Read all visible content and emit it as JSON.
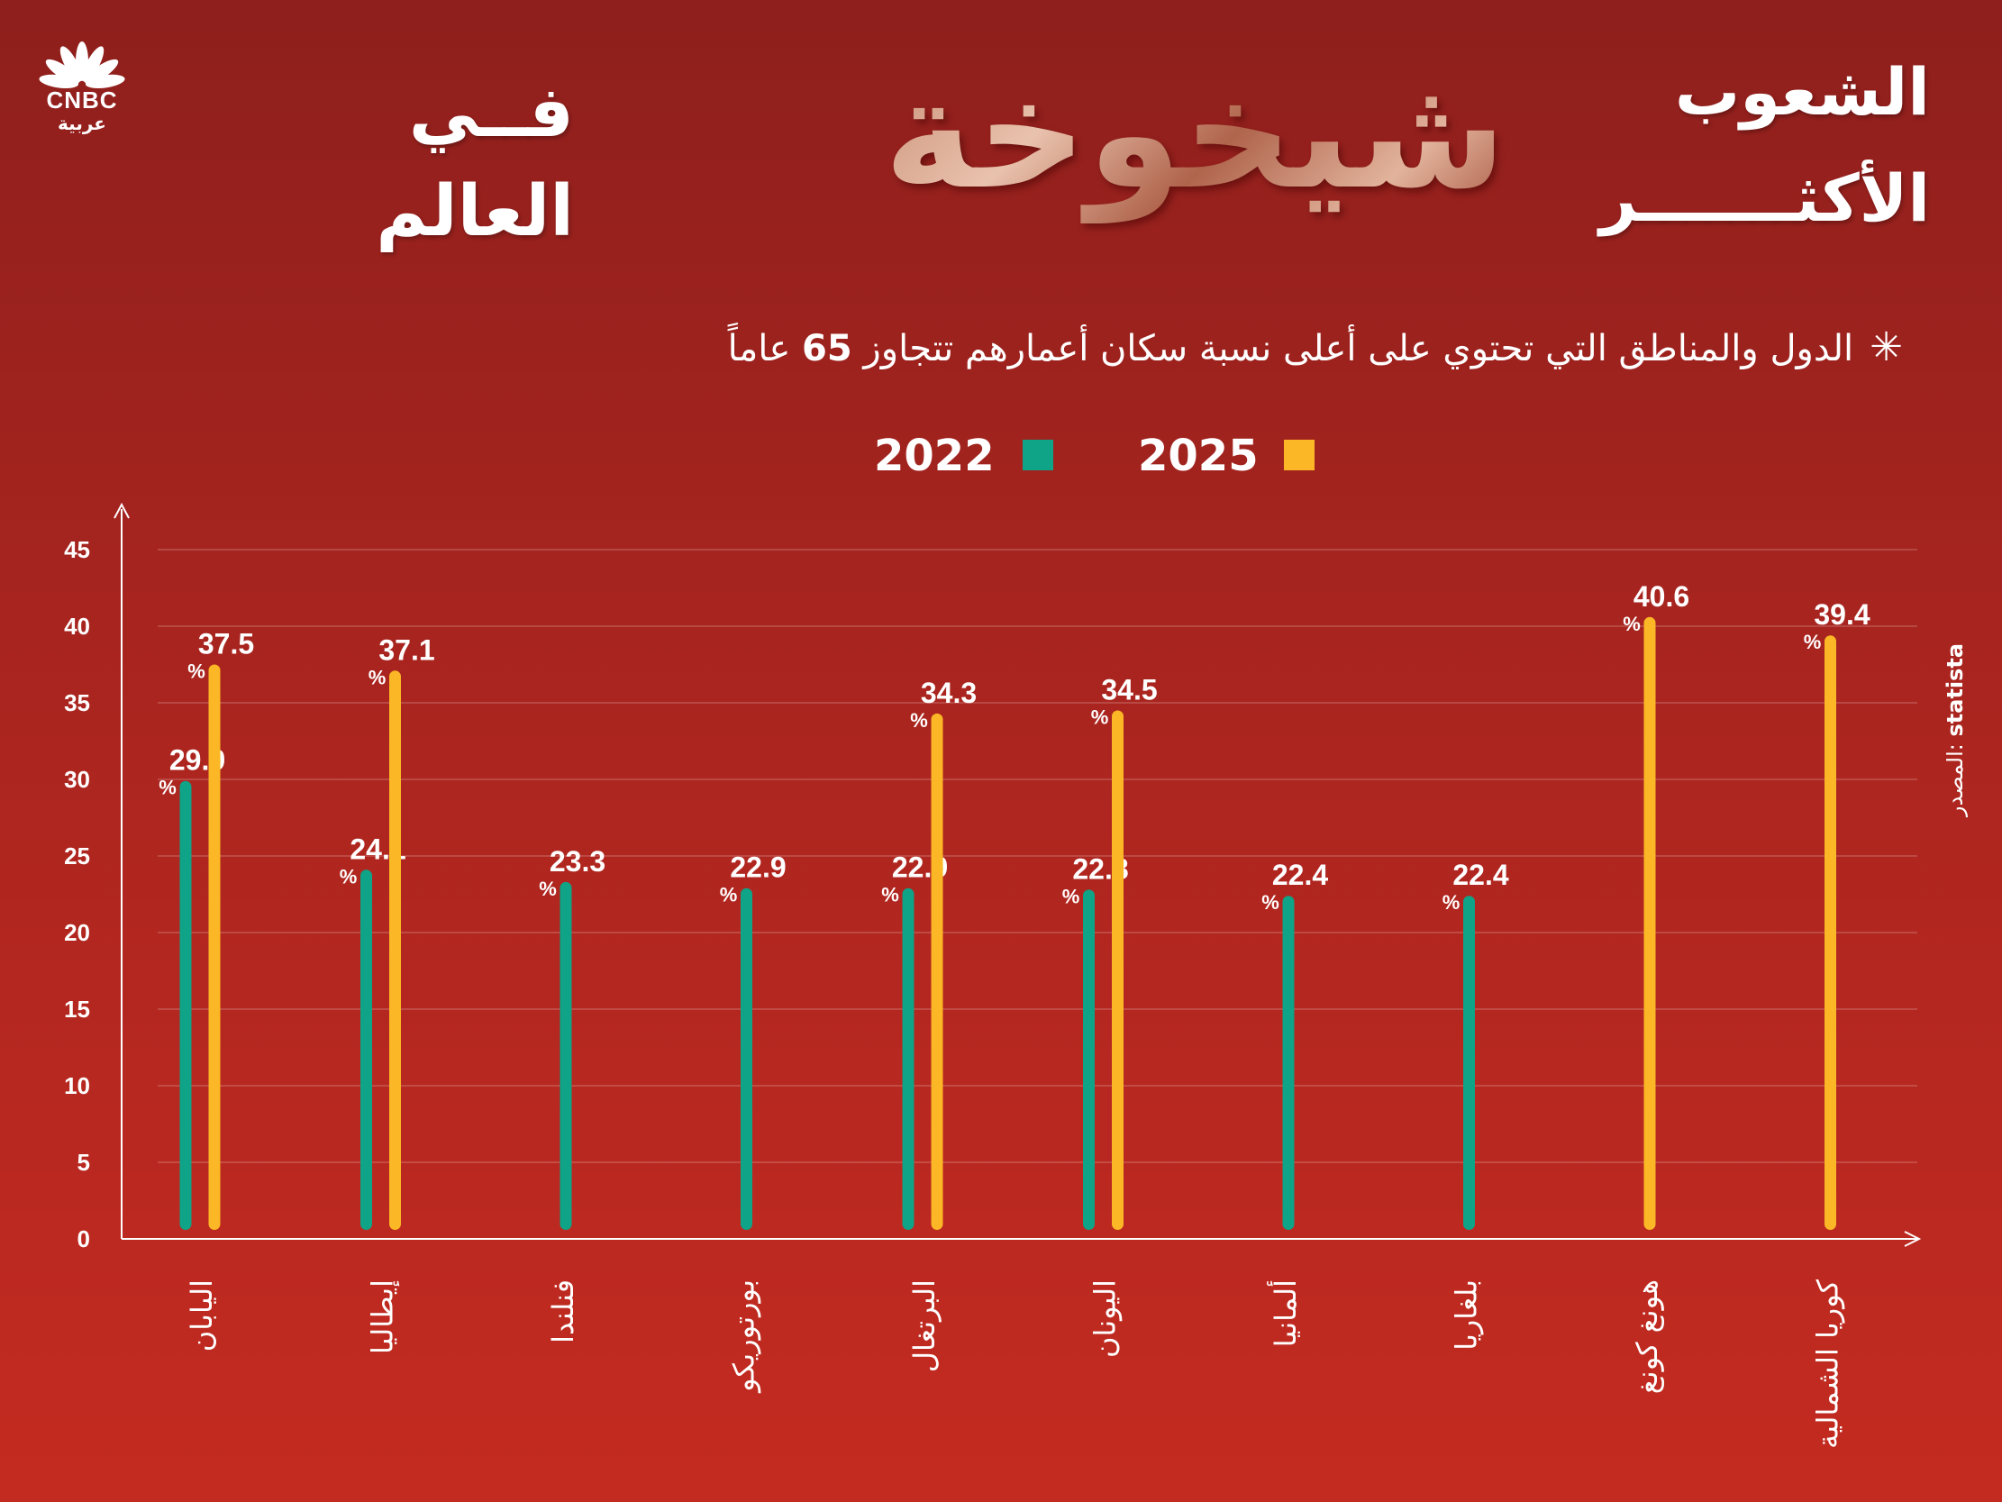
{
  "logo": {
    "brand": "CNBC",
    "sub": "عربية"
  },
  "title": {
    "line1": "الشعوب",
    "line2": "الأكثـــــــر",
    "big": "شيخوخة",
    "line3": "فــي",
    "line4": "العالم"
  },
  "subtitle": {
    "star": "✳",
    "text": "الدول والمناطق التي تحتوي على أعلى نسبة سكان أعمارهم تتجاوز ",
    "number": "65",
    "tail": " عاماً"
  },
  "legend": [
    {
      "label": "2025",
      "color": "#fbb725"
    },
    {
      "label": "2022",
      "color": "#0fa387"
    }
  ],
  "source": {
    "label": "المصدر:",
    "name": "statista"
  },
  "chart_data": {
    "type": "bar",
    "categories": [
      "اليابان",
      "إيطاليا",
      "فنلندا",
      "بورتوريكو",
      "البرتغال",
      "اليونان",
      "ألمانيا",
      "بلغاريا",
      "هونغ كونغ",
      "كوريا الشمالية"
    ],
    "series": [
      {
        "name": "2022",
        "color": "#0fa387",
        "values": [
          29.9,
          24.1,
          23.3,
          22.9,
          22.9,
          22.8,
          22.4,
          22.4,
          null,
          null
        ]
      },
      {
        "name": "2025",
        "color": "#fbb725",
        "values": [
          37.5,
          37.1,
          null,
          null,
          34.3,
          34.5,
          null,
          null,
          40.6,
          39.4
        ]
      }
    ],
    "value_suffix": "%",
    "yticks": [
      0,
      5,
      10,
      15,
      20,
      25,
      30,
      35,
      40,
      45
    ],
    "ylim": [
      0,
      45
    ],
    "grid": true
  }
}
